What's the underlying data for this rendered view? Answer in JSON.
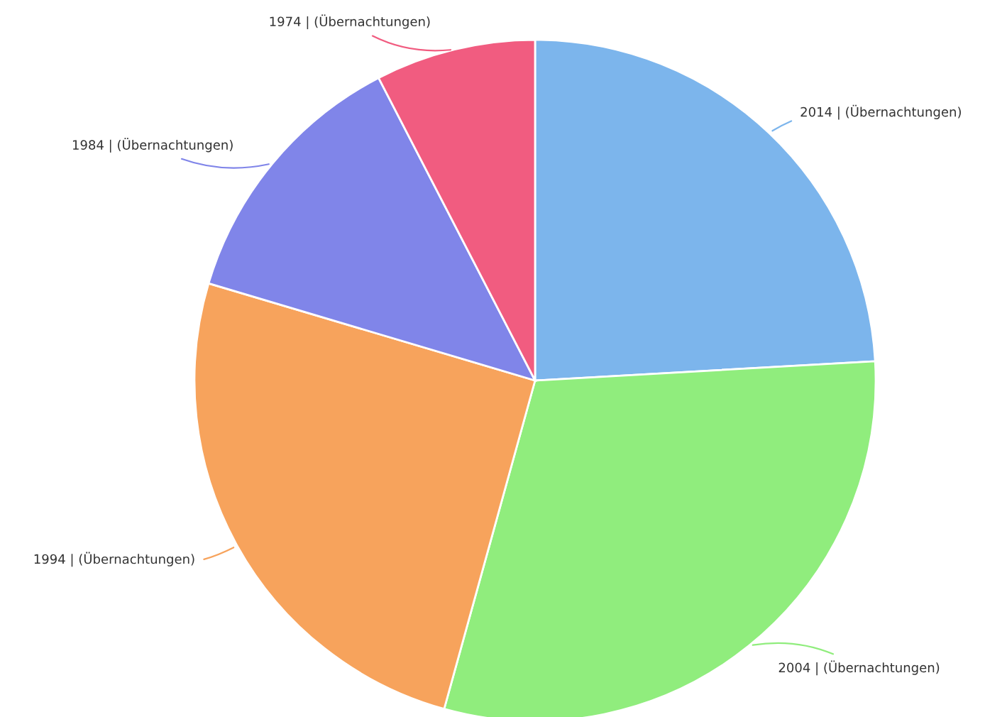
{
  "chart_data": {
    "type": "pie",
    "categories": [
      "2014 | (Übernachtungen)",
      "2004 | (Übernachtungen)",
      "1994 | (Übernachtungen)",
      "1984 | (Übernachtungen)",
      "1974 | (Übernachtungen)"
    ],
    "values": [
      24.1,
      30.2,
      25.3,
      12.8,
      7.6
    ],
    "colors": [
      "#7cb5ec",
      "#90ed7d",
      "#f7a35c",
      "#8085e9",
      "#f15c80"
    ]
  }
}
